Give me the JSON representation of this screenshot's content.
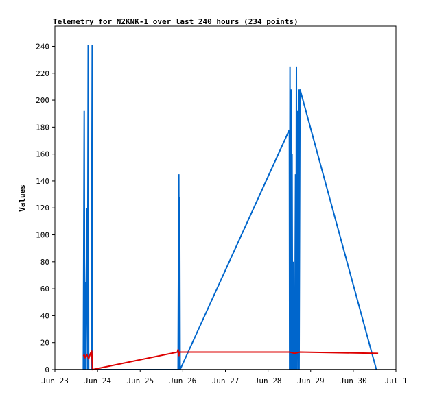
{
  "chart_data": {
    "type": "line",
    "title": "Telemetry for N2KNK-1 over last 240 hours (234 points)",
    "xlabel": "",
    "ylabel": "Values",
    "xlim": [
      "2023-06-23",
      "2023-07-01"
    ],
    "ylim": [
      0,
      255
    ],
    "grid": false,
    "x_ticks": [
      "Jun 23",
      "Jun 24",
      "Jun 25",
      "Jun 26",
      "Jun 27",
      "Jun 28",
      "Jun 29",
      "Jun 30",
      "Jul 1"
    ],
    "y_ticks": [
      0,
      20,
      40,
      60,
      80,
      100,
      120,
      140,
      160,
      180,
      200,
      220,
      240
    ],
    "series": [
      {
        "color": "#0066cc",
        "points": [
          [
            "2023-06-23T16:00",
            0
          ],
          [
            "2023-06-23T16:30",
            192
          ],
          [
            "2023-06-23T16:45",
            0
          ],
          [
            "2023-06-23T17:00",
            65
          ],
          [
            "2023-06-23T17:15",
            0
          ],
          [
            "2023-06-23T18:00",
            120
          ],
          [
            "2023-06-23T18:20",
            0
          ],
          [
            "2023-06-23T18:45",
            241
          ],
          [
            "2023-06-23T19:00",
            0
          ],
          [
            "2023-06-23T20:30",
            0
          ],
          [
            "2023-06-23T21:00",
            241
          ],
          [
            "2023-06-23T21:10",
            0
          ],
          [
            "2023-06-25T21:20",
            0
          ],
          [
            "2023-06-25T21:45",
            145
          ],
          [
            "2023-06-25T22:00",
            0
          ],
          [
            "2023-06-25T22:15",
            128
          ],
          [
            "2023-06-25T22:30",
            0
          ],
          [
            "2023-06-28T12:00",
            178
          ],
          [
            "2023-06-28T12:10",
            0
          ],
          [
            "2023-06-28T12:20",
            225
          ],
          [
            "2023-06-28T12:30",
            0
          ],
          [
            "2023-06-28T13:00",
            208
          ],
          [
            "2023-06-28T13:10",
            0
          ],
          [
            "2023-06-28T13:30",
            160
          ],
          [
            "2023-06-28T13:50",
            0
          ],
          [
            "2023-06-28T14:15",
            80
          ],
          [
            "2023-06-28T14:30",
            0
          ],
          [
            "2023-06-28T14:40",
            40
          ],
          [
            "2023-06-28T15:00",
            0
          ],
          [
            "2023-06-28T15:30",
            145
          ],
          [
            "2023-06-28T15:45",
            0
          ],
          [
            "2023-06-28T16:00",
            225
          ],
          [
            "2023-06-28T16:10",
            0
          ],
          [
            "2023-06-28T16:40",
            192
          ],
          [
            "2023-06-28T17:00",
            0
          ],
          [
            "2023-06-28T17:20",
            208
          ],
          [
            "2023-06-28T17:30",
            0
          ],
          [
            "2023-06-28T18:00",
            208
          ],
          [
            "2023-06-30T13:00",
            0
          ]
        ]
      },
      {
        "color": "#dd0000",
        "points": [
          [
            "2023-06-23T16:00",
            10
          ],
          [
            "2023-06-23T16:30",
            11
          ],
          [
            "2023-06-23T17:00",
            9
          ],
          [
            "2023-06-23T18:00",
            11
          ],
          [
            "2023-06-23T19:00",
            8
          ],
          [
            "2023-06-23T20:00",
            12
          ],
          [
            "2023-06-23T20:45",
            14
          ],
          [
            "2023-06-23T21:10",
            0
          ],
          [
            "2023-06-25T21:00",
            13
          ],
          [
            "2023-06-25T21:20",
            15
          ],
          [
            "2023-06-25T21:45",
            10
          ],
          [
            "2023-06-25T22:00",
            13
          ],
          [
            "2023-06-28T12:00",
            13
          ],
          [
            "2023-06-28T15:00",
            12
          ],
          [
            "2023-06-28T18:00",
            13
          ],
          [
            "2023-06-30T14:00",
            12
          ]
        ]
      }
    ]
  }
}
